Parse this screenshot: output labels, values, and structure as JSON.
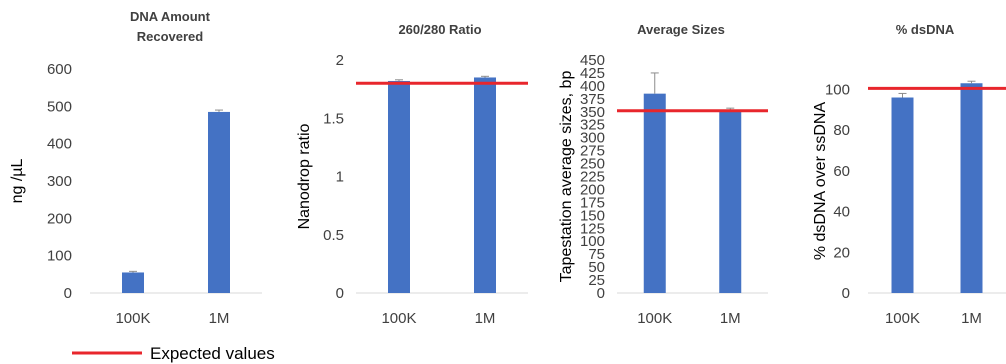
{
  "colors": {
    "bar": "#4472C4",
    "expected": "#E8262C",
    "error": "#8c8c8c",
    "axis": "#d9d9d9"
  },
  "legend": {
    "label": "Expected values"
  },
  "chart_data": [
    {
      "type": "bar",
      "title_lines": [
        "DNA Amount",
        "Recovered"
      ],
      "ylabel": "ng /µL",
      "categories": [
        "100K",
        "1M"
      ],
      "values": [
        55,
        485
      ],
      "errors": [
        3,
        5
      ],
      "ylim": [
        0,
        600
      ],
      "yticks": [
        0,
        100,
        200,
        300,
        400,
        500,
        600
      ],
      "ytick_labels": [
        "0",
        "100",
        "200",
        "300",
        "400",
        "500",
        "600"
      ],
      "expected": null
    },
    {
      "type": "bar",
      "title_lines": [
        "260/280 Ratio"
      ],
      "ylabel": "Nanodrop ratio",
      "categories": [
        "100K",
        "1M"
      ],
      "values": [
        1.82,
        1.85
      ],
      "errors": [
        0.01,
        0.01
      ],
      "ylim": [
        0,
        2
      ],
      "yticks": [
        0,
        0.5,
        1,
        1.5,
        2
      ],
      "ytick_labels": [
        "0",
        "0.5",
        "1",
        "1.5",
        "2"
      ],
      "expected": 1.8
    },
    {
      "type": "bar",
      "title_lines": [
        "Average Sizes"
      ],
      "ylabel": "Tapestation average sizes, bp",
      "categories": [
        "100K",
        "1M"
      ],
      "values": [
        385,
        352
      ],
      "errors": [
        40,
        5
      ],
      "ylim": [
        0,
        450
      ],
      "yticks": [
        0,
        25,
        50,
        75,
        100,
        125,
        150,
        175,
        200,
        225,
        250,
        275,
        300,
        325,
        350,
        375,
        400,
        425,
        450
      ],
      "ytick_labels": [
        "0",
        "25",
        "50",
        "75",
        "100",
        "125",
        "150",
        "175",
        "200",
        "225",
        "250",
        "275",
        "300",
        "325",
        "350",
        "375",
        "400",
        "425",
        "450"
      ],
      "expected": 352
    },
    {
      "type": "bar",
      "title_lines": [
        "% dsDNA"
      ],
      "ylabel": "% dsDNA over ssDNA",
      "categories": [
        "100K",
        "1M"
      ],
      "values": [
        96,
        103
      ],
      "errors": [
        2,
        1
      ],
      "ylim": [
        0,
        110
      ],
      "yticks": [
        0,
        20,
        40,
        60,
        80,
        100
      ],
      "ytick_labels": [
        "0",
        "20",
        "40",
        "60",
        "80",
        "100"
      ],
      "expected": 100.5
    }
  ]
}
